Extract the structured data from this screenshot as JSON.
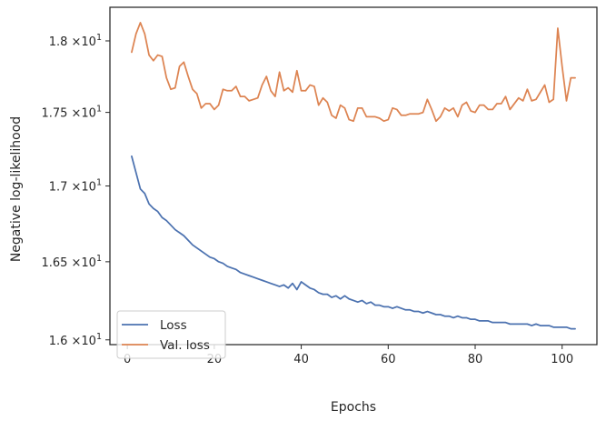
{
  "chart_data": {
    "type": "line",
    "xlabel": "Epochs",
    "ylabel": "Negative log-likelihood",
    "yscale": "log",
    "xlim": [
      -4,
      108
    ],
    "ylim": [
      15.97,
      18.24
    ],
    "grid": false,
    "legend_position": "bottom-left",
    "x_ticks": [
      {
        "value": 0,
        "label": "0"
      },
      {
        "value": 20,
        "label": "20"
      },
      {
        "value": 40,
        "label": "40"
      },
      {
        "value": 60,
        "label": "60"
      },
      {
        "value": 80,
        "label": "80"
      },
      {
        "value": 100,
        "label": "100"
      }
    ],
    "y_ticks": [
      {
        "value": 16.0,
        "mantissa": "1.6",
        "suffix": "×10",
        "exponent": "1"
      },
      {
        "value": 16.5,
        "mantissa": "1.65",
        "suffix": "×10",
        "exponent": "1"
      },
      {
        "value": 17.0,
        "mantissa": "1.7",
        "suffix": "×10",
        "exponent": "1"
      },
      {
        "value": 17.5,
        "mantissa": "1.75",
        "suffix": "×10",
        "exponent": "1"
      },
      {
        "value": 18.0,
        "mantissa": "1.8",
        "suffix": "×10",
        "exponent": "1"
      }
    ],
    "x": [
      1,
      2,
      3,
      4,
      5,
      6,
      7,
      8,
      9,
      10,
      11,
      12,
      13,
      14,
      15,
      16,
      17,
      18,
      19,
      20,
      21,
      22,
      23,
      24,
      25,
      26,
      27,
      28,
      29,
      30,
      31,
      32,
      33,
      34,
      35,
      36,
      37,
      38,
      39,
      40,
      41,
      42,
      43,
      44,
      45,
      46,
      47,
      48,
      49,
      50,
      51,
      52,
      53,
      54,
      55,
      56,
      57,
      58,
      59,
      60,
      61,
      62,
      63,
      64,
      65,
      66,
      67,
      68,
      69,
      70,
      71,
      72,
      73,
      74,
      75,
      76,
      77,
      78,
      79,
      80,
      81,
      82,
      83,
      84,
      85,
      86,
      87,
      88,
      89,
      90,
      91,
      92,
      93,
      94,
      95,
      96,
      97,
      98,
      99,
      100,
      101,
      102,
      103
    ],
    "series": [
      {
        "name": "Loss",
        "color": "#4c72b0",
        "values": [
          17.2,
          17.09,
          16.98,
          16.95,
          16.88,
          16.85,
          16.83,
          16.79,
          16.77,
          16.74,
          16.71,
          16.69,
          16.67,
          16.64,
          16.61,
          16.59,
          16.57,
          16.55,
          16.53,
          16.52,
          16.5,
          16.49,
          16.47,
          16.46,
          16.45,
          16.43,
          16.42,
          16.41,
          16.4,
          16.39,
          16.38,
          16.37,
          16.36,
          16.35,
          16.34,
          16.35,
          16.33,
          16.36,
          16.32,
          16.37,
          16.35,
          16.33,
          16.32,
          16.3,
          16.29,
          16.29,
          16.27,
          16.28,
          16.26,
          16.28,
          16.26,
          16.25,
          16.24,
          16.25,
          16.23,
          16.24,
          16.22,
          16.22,
          16.21,
          16.21,
          16.2,
          16.21,
          16.2,
          16.19,
          16.19,
          16.18,
          16.18,
          16.17,
          16.18,
          16.17,
          16.16,
          16.16,
          16.15,
          16.15,
          16.14,
          16.15,
          16.14,
          16.14,
          16.13,
          16.13,
          16.12,
          16.12,
          16.12,
          16.11,
          16.11,
          16.11,
          16.11,
          16.1,
          16.1,
          16.1,
          16.1,
          16.1,
          16.09,
          16.1,
          16.09,
          16.09,
          16.09,
          16.08,
          16.08,
          16.08,
          16.08,
          16.07,
          16.07
        ]
      },
      {
        "name": "Val. loss",
        "color": "#dd8452",
        "values": [
          17.92,
          18.05,
          18.13,
          18.05,
          17.9,
          17.86,
          17.9,
          17.89,
          17.74,
          17.66,
          17.67,
          17.82,
          17.85,
          17.75,
          17.66,
          17.63,
          17.53,
          17.56,
          17.56,
          17.52,
          17.55,
          17.66,
          17.65,
          17.65,
          17.68,
          17.61,
          17.61,
          17.58,
          17.59,
          17.6,
          17.69,
          17.75,
          17.65,
          17.61,
          17.78,
          17.65,
          17.67,
          17.64,
          17.79,
          17.65,
          17.65,
          17.69,
          17.68,
          17.55,
          17.6,
          17.57,
          17.48,
          17.46,
          17.55,
          17.53,
          17.45,
          17.44,
          17.53,
          17.53,
          17.47,
          17.47,
          17.47,
          17.46,
          17.44,
          17.45,
          17.53,
          17.52,
          17.48,
          17.48,
          17.49,
          17.49,
          17.49,
          17.5,
          17.59,
          17.52,
          17.44,
          17.47,
          17.53,
          17.51,
          17.53,
          17.47,
          17.55,
          17.57,
          17.51,
          17.5,
          17.55,
          17.55,
          17.52,
          17.52,
          17.56,
          17.56,
          17.61,
          17.52,
          17.56,
          17.6,
          17.58,
          17.66,
          17.58,
          17.59,
          17.64,
          17.69,
          17.57,
          17.59,
          18.09,
          17.82,
          17.58,
          17.74,
          17.74
        ]
      }
    ]
  }
}
